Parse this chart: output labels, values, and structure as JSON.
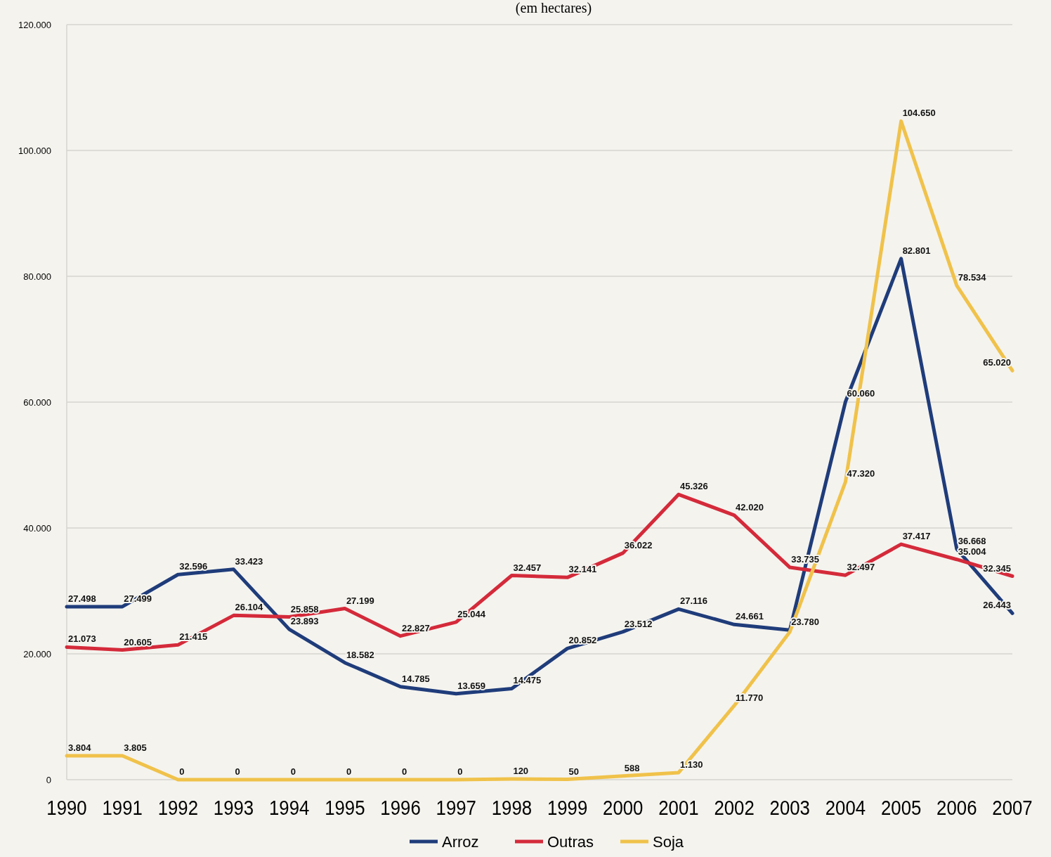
{
  "chart_data": {
    "type": "line",
    "title": "(em hectares)",
    "categories": [
      "1990",
      "1991",
      "1992",
      "1993",
      "1994",
      "1995",
      "1996",
      "1997",
      "1998",
      "1999",
      "2000",
      "2001",
      "2002",
      "2003",
      "2004",
      "2005",
      "2006",
      "2007"
    ],
    "series": [
      {
        "name": "Arroz",
        "color": "#1f3c7a",
        "values": [
          27498,
          27499,
          32596,
          33423,
          23893,
          18582,
          14785,
          13659,
          14475,
          20852,
          23512,
          27116,
          24661,
          23780,
          60060,
          82801,
          36668,
          26443
        ],
        "value_labels": [
          "27.498",
          "27.499",
          "32.596",
          "33.423",
          "23.893",
          "18.582",
          "14.785",
          "13.659",
          "14.475",
          "20.852",
          "23.512",
          "27.116",
          "24.661",
          "23.780",
          "60.060",
          "82.801",
          "36.668",
          "26.443"
        ]
      },
      {
        "name": "Outras",
        "color": "#d42a3a",
        "values": [
          21073,
          20605,
          21415,
          26104,
          25858,
          27199,
          22827,
          25044,
          32457,
          32141,
          36022,
          45326,
          42020,
          33735,
          32497,
          37417,
          35004,
          32345
        ],
        "value_labels": [
          "21.073",
          "20.605",
          "21.415",
          "26.104",
          "25.858",
          "27.199",
          "22.827",
          "25.044",
          "32.457",
          "32.141",
          "36.022",
          "45.326",
          "42.020",
          "33.735",
          "32.497",
          "37.417",
          "35.004",
          "32.345"
        ]
      },
      {
        "name": "Soja",
        "color": "#f0c24a",
        "values": [
          3804,
          3805,
          0,
          0,
          0,
          0,
          0,
          0,
          120,
          50,
          588,
          1130,
          11770,
          23500,
          47320,
          104650,
          78534,
          65020
        ],
        "value_labels": [
          "3.804",
          "3.805",
          "0",
          "0",
          "0",
          "0",
          "0",
          "0",
          "120",
          "50",
          "588",
          "1.130",
          "11.770",
          null,
          "47.320",
          "104.650",
          "78.534",
          "65.020"
        ]
      }
    ],
    "ylim": [
      0,
      120000
    ],
    "yticks": [
      0,
      {
        "value": 20000,
        "label": "20.000"
      },
      {
        "value": 40000,
        "label": "40.000"
      },
      {
        "value": 60000,
        "label": "60.000"
      },
      {
        "value": 80000,
        "label": "80.000"
      },
      {
        "value": 100000,
        "label": "100.000"
      },
      {
        "value": 120000,
        "label": "120.000"
      }
    ],
    "grid": "y",
    "legend": "bottom",
    "marker": "none",
    "line_style": "solid"
  }
}
